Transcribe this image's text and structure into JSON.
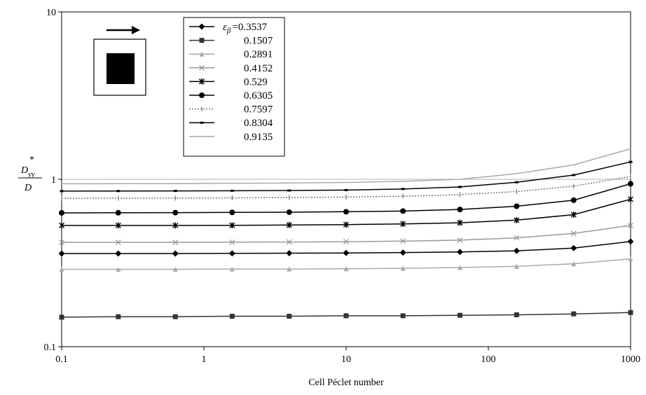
{
  "chart_data": {
    "type": "line",
    "xscale": "log",
    "yscale": "log",
    "xlim": [
      0.1,
      1000
    ],
    "ylim": [
      0.1,
      10
    ],
    "xlabel": "Cell Péclet number",
    "ylabel": {
      "main": "D",
      "sup": "*",
      "sub": "yy",
      "denominator": "D"
    },
    "xticks": [
      "0.1",
      "1",
      "10",
      "100",
      "1000"
    ],
    "yticks": [
      "0.1",
      "1",
      "10"
    ],
    "grid": "horizontal at y=1",
    "legend": {
      "placement": "top-left",
      "symbol": "ε",
      "symbol_sub": "β",
      "equals": "="
    },
    "x": [
      0.1,
      0.25,
      0.63,
      1.58,
      3.98,
      10,
      25.1,
      63.1,
      158,
      398,
      1000
    ],
    "series": [
      {
        "label": "0.3537",
        "color": "#000000",
        "marker": "diamond",
        "dash": "",
        "values": [
          0.36,
          0.36,
          0.36,
          0.361,
          0.362,
          0.363,
          0.365,
          0.368,
          0.374,
          0.388,
          0.425
        ]
      },
      {
        "label": "0.1507",
        "color": "#333333",
        "marker": "square",
        "dash": "",
        "values": [
          0.15,
          0.151,
          0.151,
          0.152,
          0.152,
          0.153,
          0.153,
          0.154,
          0.155,
          0.157,
          0.16
        ]
      },
      {
        "label": "0.2891",
        "color": "#aaaaaa",
        "marker": "triangle",
        "dash": "",
        "values": [
          0.29,
          0.29,
          0.29,
          0.291,
          0.291,
          0.292,
          0.294,
          0.297,
          0.302,
          0.313,
          0.335
        ]
      },
      {
        "label": "0.4152",
        "color": "#999999",
        "marker": "x",
        "dash": "",
        "values": [
          0.42,
          0.42,
          0.42,
          0.421,
          0.422,
          0.424,
          0.427,
          0.433,
          0.447,
          0.475,
          0.53
        ]
      },
      {
        "label": "0.529",
        "color": "#000000",
        "marker": "star",
        "dash": "",
        "values": [
          0.53,
          0.53,
          0.53,
          0.531,
          0.533,
          0.536,
          0.541,
          0.55,
          0.57,
          0.615,
          0.76
        ]
      },
      {
        "label": "0.6305",
        "color": "#000000",
        "marker": "circle",
        "dash": "",
        "values": [
          0.63,
          0.631,
          0.632,
          0.634,
          0.636,
          0.64,
          0.646,
          0.66,
          0.69,
          0.75,
          0.94
        ]
      },
      {
        "label": "0.7597",
        "color": "#777777",
        "marker": "plus",
        "dash": "2,2",
        "values": [
          0.77,
          0.771,
          0.772,
          0.775,
          0.778,
          0.783,
          0.792,
          0.81,
          0.845,
          0.91,
          1.04
        ]
      },
      {
        "label": "0.8304",
        "color": "#000000",
        "marker": "dash",
        "dash": "",
        "values": [
          0.85,
          0.851,
          0.852,
          0.854,
          0.857,
          0.862,
          0.875,
          0.9,
          0.96,
          1.06,
          1.27
        ]
      },
      {
        "label": "0.9135",
        "color": "#aaaaaa",
        "marker": "none",
        "dash": "",
        "values": [
          0.94,
          0.941,
          0.943,
          0.946,
          0.95,
          0.958,
          0.972,
          1.0,
          1.08,
          1.22,
          1.52
        ]
      }
    ],
    "inset": {
      "description_icons": [
        "arrow-right-icon",
        "square-in-square-icon"
      ]
    }
  }
}
